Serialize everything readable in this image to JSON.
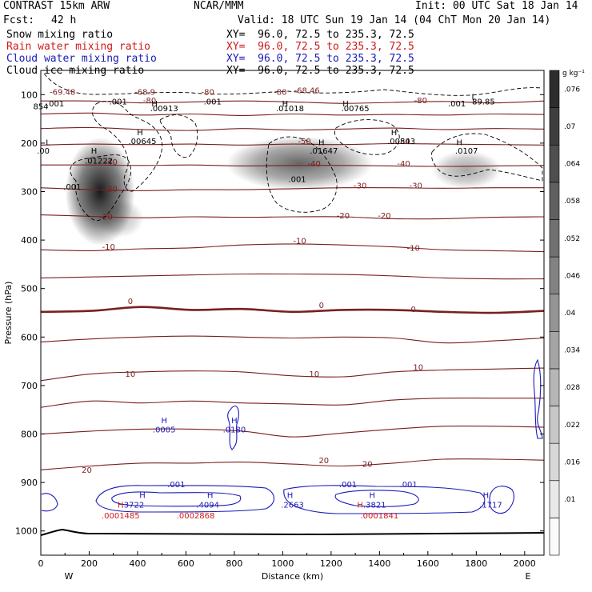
{
  "header": {
    "left1": "CONTRAST 15km ARW",
    "center1": "NCAR/MMM",
    "right1": "Init: 00 UTC Sat 18 Jan 14",
    "fcst_label": "Fcst:",
    "fcst_value": "42 h",
    "valid": "Valid: 18 UTC Sun 19 Jan 14 (04 ChT Mon 20 Jan 14)"
  },
  "fields": [
    {
      "name": "Snow mixing ratio",
      "xy": "XY=  96.0, 72.5 to 235.3, 72.5",
      "color": "#000000"
    },
    {
      "name": "Rain water mixing ratio",
      "xy": "XY=  96.0, 72.5 to 235.3, 72.5",
      "color": "#d11919"
    },
    {
      "name": "Cloud water mixing ratio",
      "xy": "XY=  96.0, 72.5 to 235.3, 72.5",
      "color": "#1a1ab8"
    },
    {
      "name": "Cloud ice mixing ratio",
      "xy": "XY=  96.0, 72.5 to 235.3, 72.5",
      "color": "#000000"
    }
  ],
  "chart_data": {
    "type": "cross-section",
    "xlabel": "Distance (km)",
    "ylabel": "Pressure (hPa)",
    "xlim": [
      0,
      2080
    ],
    "ylim": [
      1050,
      50
    ],
    "x_ticks": [
      0,
      200,
      400,
      600,
      800,
      1000,
      1200,
      1400,
      1600,
      1800,
      2000
    ],
    "y_ticks": [
      100,
      200,
      300,
      400,
      500,
      600,
      700,
      800,
      900,
      1000
    ],
    "end_labels": {
      "left": "W",
      "right": "E"
    },
    "colorbar": {
      "unit": "g kg⁻¹",
      "ticks": [
        ".01",
        ".016",
        ".022",
        ".028",
        ".034",
        ".04",
        ".046",
        ".052",
        ".058",
        ".064",
        ".07",
        ".076"
      ]
    },
    "temperature_labels": [
      {
        "x": 90,
        "p": 100,
        "text": "-69.48"
      },
      {
        "x": 430,
        "p": 100,
        "text": "-68.9"
      },
      {
        "x": 690,
        "p": 100,
        "text": "-80"
      },
      {
        "x": 990,
        "p": 100,
        "text": "-80"
      },
      {
        "x": 1100,
        "p": 97,
        "text": "-68.46"
      },
      {
        "x": 450,
        "p": 118,
        "text": "-80"
      },
      {
        "x": 1570,
        "p": 118,
        "text": "-80"
      },
      {
        "x": 1090,
        "p": 202,
        "text": "-50"
      },
      {
        "x": 1500,
        "p": 202,
        "text": "-50"
      },
      {
        "x": 1130,
        "p": 248,
        "text": "-40"
      },
      {
        "x": 1500,
        "p": 248,
        "text": "-40"
      },
      {
        "x": 290,
        "p": 245,
        "text": "-40"
      },
      {
        "x": 290,
        "p": 300,
        "text": "-30"
      },
      {
        "x": 1320,
        "p": 293,
        "text": "-30"
      },
      {
        "x": 1550,
        "p": 293,
        "text": "-30"
      },
      {
        "x": 270,
        "p": 358,
        "text": "-20"
      },
      {
        "x": 1250,
        "p": 355,
        "text": "-20"
      },
      {
        "x": 1420,
        "p": 355,
        "text": "-20"
      },
      {
        "x": 280,
        "p": 420,
        "text": "-10"
      },
      {
        "x": 1070,
        "p": 407,
        "text": "-10"
      },
      {
        "x": 1540,
        "p": 422,
        "text": "-10"
      },
      {
        "x": 370,
        "p": 532,
        "text": "0"
      },
      {
        "x": 1160,
        "p": 540,
        "text": "0"
      },
      {
        "x": 1540,
        "p": 548,
        "text": "0"
      },
      {
        "x": 370,
        "p": 682,
        "text": "10"
      },
      {
        "x": 1130,
        "p": 682,
        "text": "10"
      },
      {
        "x": 1560,
        "p": 668,
        "text": "10"
      },
      {
        "x": 190,
        "p": 880,
        "text": "20"
      },
      {
        "x": 1170,
        "p": 860,
        "text": "20"
      },
      {
        "x": 1350,
        "p": 868,
        "text": "20"
      }
    ],
    "isotherms": [
      {
        "value": "-80",
        "p": [
          113,
          113,
          117,
          115,
          113,
          115,
          118,
          116,
          114,
          117,
          113
        ]
      },
      {
        "value": "-70",
        "p": [
          140,
          138,
          142,
          140,
          143,
          140,
          142,
          141,
          142,
          140,
          141
        ]
      },
      {
        "value": "-60",
        "p": [
          170,
          168,
          172,
          174,
          170,
          173,
          171,
          169,
          172,
          170,
          171
        ]
      },
      {
        "value": "-50",
        "p": [
          204,
          202,
          203,
          202,
          204,
          202,
          203,
          201,
          202,
          203,
          204
        ]
      },
      {
        "value": "-40",
        "p": [
          245,
          245,
          246,
          245,
          247,
          246,
          246,
          247,
          248,
          247,
          246
        ]
      },
      {
        "value": "-30",
        "p": [
          292,
          296,
          298,
          296,
          296,
          294,
          292,
          292,
          293,
          292,
          292
        ]
      },
      {
        "value": "-20",
        "p": [
          348,
          351,
          354,
          352,
          353,
          352,
          352,
          356,
          356,
          353,
          352
        ]
      },
      {
        "value": "-10",
        "p": [
          420,
          422,
          418,
          416,
          410,
          408,
          410,
          414,
          420,
          422,
          424
        ]
      },
      {
        "value": "-5",
        "p": [
          478,
          476,
          474,
          472,
          470,
          470,
          471,
          474,
          478,
          480,
          480
        ]
      },
      {
        "value": "0",
        "p": [
          548,
          546,
          538,
          544,
          542,
          548,
          544,
          544,
          548,
          550,
          546
        ]
      },
      {
        "value": "5",
        "p": [
          610,
          604,
          600,
          598,
          600,
          602,
          600,
          602,
          612,
          608,
          602
        ]
      },
      {
        "value": "10",
        "p": [
          690,
          676,
          672,
          670,
          672,
          680,
          682,
          672,
          668,
          666,
          664
        ]
      },
      {
        "value": "15",
        "p": [
          745,
          732,
          736,
          732,
          736,
          738,
          740,
          730,
          726,
          726,
          726
        ]
      },
      {
        "value": "20",
        "p": [
          800,
          794,
          790,
          790,
          794,
          806,
          798,
          790,
          784,
          784,
          786
        ]
      },
      {
        "value": "25",
        "p": [
          874,
          866,
          860,
          860,
          858,
          862,
          866,
          860,
          852,
          852,
          854
        ]
      }
    ],
    "cloud_water_labels": [
      {
        "x": 510,
        "p": 778,
        "text": "H"
      },
      {
        "x": 510,
        "p": 797,
        "text": ".0005"
      },
      {
        "x": 800,
        "p": 778,
        "text": "H"
      },
      {
        "x": 800,
        "p": 797,
        "text": ".0180"
      },
      {
        "x": 560,
        "p": 910,
        "text": ".001"
      },
      {
        "x": 420,
        "p": 932,
        "text": "H"
      },
      {
        "x": 380,
        "p": 952,
        "text": ".3722"
      },
      {
        "x": 700,
        "p": 932,
        "text": "H"
      },
      {
        "x": 690,
        "p": 952,
        "text": ".4094"
      },
      {
        "x": 1030,
        "p": 932,
        "text": "H"
      },
      {
        "x": 1040,
        "p": 952,
        "text": ".2663"
      },
      {
        "x": 1270,
        "p": 910,
        "text": ".001"
      },
      {
        "x": 1370,
        "p": 932,
        "text": "H"
      },
      {
        "x": 1380,
        "p": 952,
        "text": ".3821"
      },
      {
        "x": 1520,
        "p": 910,
        "text": ".001"
      },
      {
        "x": 1840,
        "p": 932,
        "text": "H"
      },
      {
        "x": 1860,
        "p": 952,
        "text": ".1717"
      }
    ],
    "rain_labels": [
      {
        "x": 330,
        "p": 952,
        "text": "H"
      },
      {
        "x": 330,
        "p": 974,
        "text": ".0001485"
      },
      {
        "x": 640,
        "p": 974,
        "text": ".0002868"
      },
      {
        "x": 1320,
        "p": 952,
        "text": "H"
      },
      {
        "x": 1400,
        "p": 974,
        "text": ".0001841"
      }
    ],
    "ice_labels": [
      {
        "x": 60,
        "p": 124,
        "text": ".001"
      },
      {
        "x": 320,
        "p": 120,
        "text": ".001"
      },
      {
        "x": 710,
        "p": 120,
        "text": ".001"
      },
      {
        "x": 1720,
        "p": 124,
        "text": ".001"
      },
      {
        "x": 1790,
        "p": 110,
        "text": "L"
      },
      {
        "x": 1830,
        "p": 120,
        "text": "89.85"
      },
      {
        "x": 0,
        "p": 130,
        "text": "854"
      },
      {
        "x": 470,
        "p": 124,
        "text": "H"
      },
      {
        "x": 510,
        "p": 134,
        "text": ".00913"
      },
      {
        "x": 1010,
        "p": 124,
        "text": "H"
      },
      {
        "x": 1030,
        "p": 134,
        "text": ".01018"
      },
      {
        "x": 1260,
        "p": 124,
        "text": "H"
      },
      {
        "x": 1300,
        "p": 134,
        "text": ".00765"
      },
      {
        "x": 30,
        "p": 204,
        "text": "L"
      },
      {
        "x": 10,
        "p": 222,
        "text": ".00"
      },
      {
        "x": 410,
        "p": 184,
        "text": "H"
      },
      {
        "x": 420,
        "p": 202,
        "text": ".00645"
      },
      {
        "x": 220,
        "p": 222,
        "text": "H"
      },
      {
        "x": 240,
        "p": 242,
        "text": ".01222"
      },
      {
        "x": 1160,
        "p": 204,
        "text": "H"
      },
      {
        "x": 1170,
        "p": 222,
        "text": ".01647"
      },
      {
        "x": 1460,
        "p": 184,
        "text": "H"
      },
      {
        "x": 1490,
        "p": 202,
        "text": ".00843"
      },
      {
        "x": 1730,
        "p": 204,
        "text": "H"
      },
      {
        "x": 1760,
        "p": 222,
        "text": ".0107"
      },
      {
        "x": 130,
        "p": 296,
        "text": ".001"
      },
      {
        "x": 1060,
        "p": 280,
        "text": ".001"
      }
    ],
    "snow_blobs": [
      {
        "x": 245,
        "p": 300,
        "rx": 45,
        "rp": 70,
        "intensity": 0.9
      },
      {
        "x": 330,
        "p": 355,
        "rx": 30,
        "rp": 25,
        "intensity": 0.25
      },
      {
        "x": 1070,
        "p": 242,
        "rx": 95,
        "rp": 35,
        "intensity": 0.6
      },
      {
        "x": 1760,
        "p": 255,
        "rx": 45,
        "rp": 25,
        "intensity": 0.35
      }
    ]
  }
}
